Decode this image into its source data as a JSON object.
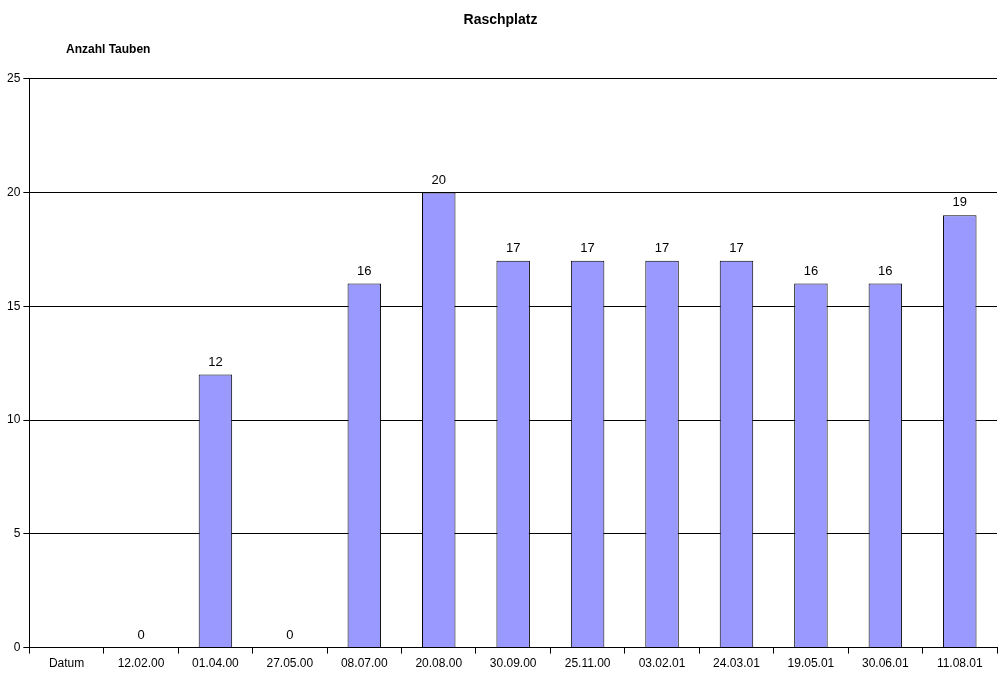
{
  "chart_data": {
    "type": "bar",
    "title": "Raschplatz",
    "ylabel": "Anzahl Tauben",
    "categories": [
      "Datum",
      "12.02.00",
      "01.04.00",
      "27.05.00",
      "08.07.00",
      "20.08.00",
      "30.09.00",
      "25.11.00",
      "03.02.01",
      "24.03.01",
      "19.05.01",
      "30.06.01",
      "11.08.01"
    ],
    "values": [
      null,
      0,
      12,
      0,
      16,
      20,
      17,
      17,
      17,
      17,
      16,
      16,
      19
    ],
    "color": "#9999ff",
    "ylim": [
      0,
      25
    ],
    "yticks": [
      0,
      5,
      10,
      15,
      20,
      25
    ],
    "grid": "y",
    "data_labels": true
  }
}
